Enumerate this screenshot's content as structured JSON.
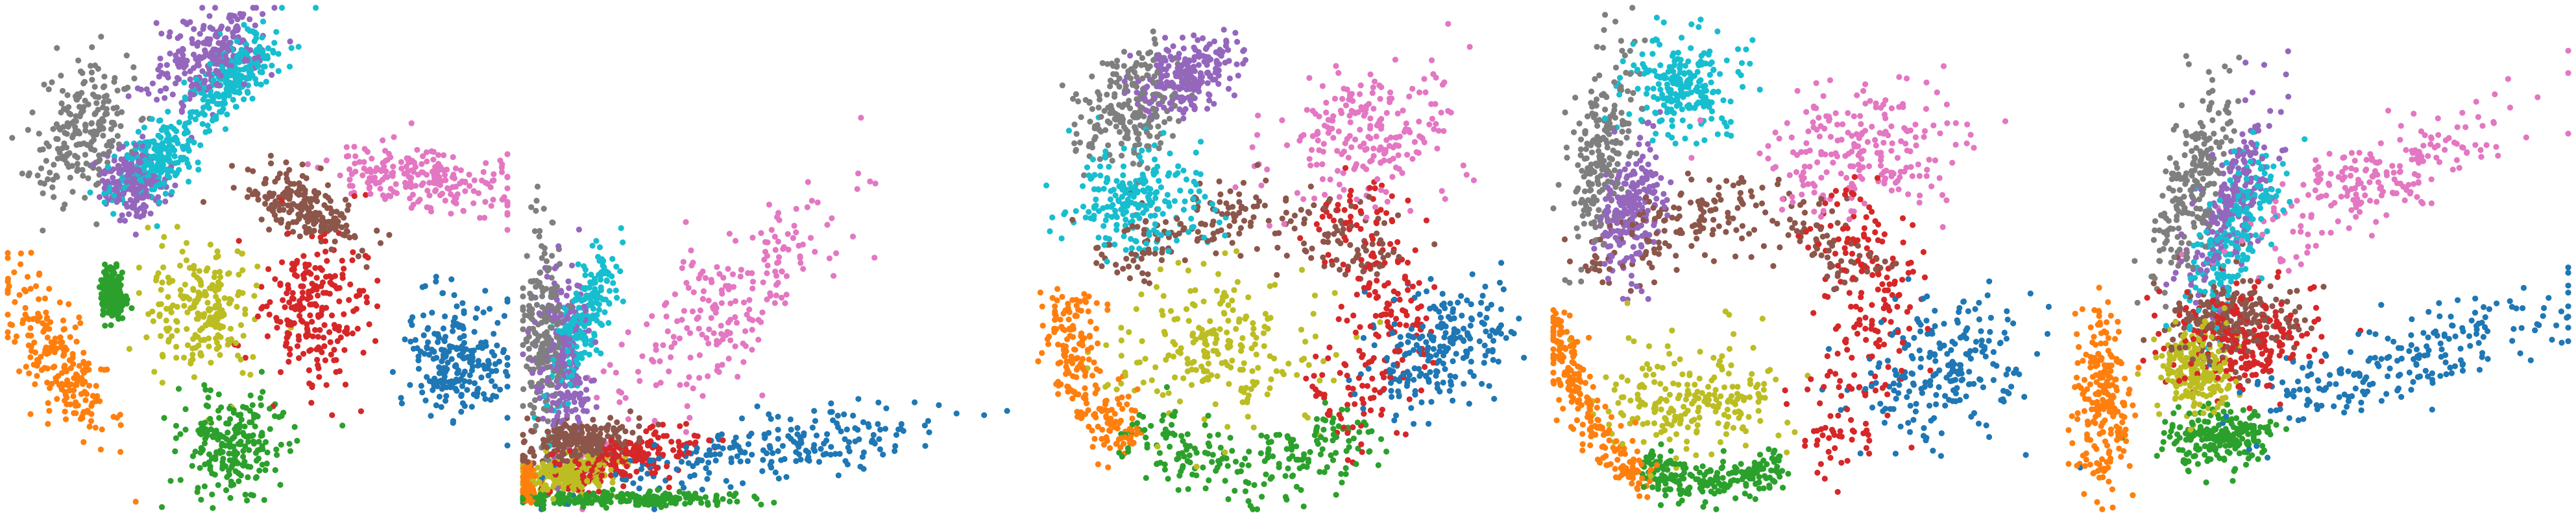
{
  "chart_data": [
    {
      "type": "scatter",
      "points_per_cluster": 220,
      "seed": 11,
      "axis_visible": false,
      "grid": false,
      "legend": "none",
      "clusters": [
        {
          "color": "#7f7f7f",
          "shape": "blob",
          "cx": 0.15,
          "cy": 0.25,
          "rx": 0.08,
          "ry": 0.14,
          "rot": 25
        },
        {
          "color": "#9467bd",
          "shape": "blob",
          "cx": 0.4,
          "cy": 0.1,
          "rx": 0.12,
          "ry": 0.07,
          "rot": -35
        },
        {
          "color": "#9467bd",
          "shape": "blob",
          "cx": 0.25,
          "cy": 0.35,
          "rx": 0.05,
          "ry": 0.06,
          "rot": 0
        },
        {
          "color": "#17becf",
          "shape": "blob",
          "cx": 0.45,
          "cy": 0.14,
          "rx": 0.1,
          "ry": 0.05,
          "rot": -40
        },
        {
          "color": "#17becf",
          "shape": "blob",
          "cx": 0.3,
          "cy": 0.3,
          "rx": 0.1,
          "ry": 0.05,
          "rot": -40
        },
        {
          "color": "#e377c2",
          "shape": "blob",
          "cx": 0.83,
          "cy": 0.34,
          "rx": 0.16,
          "ry": 0.06,
          "rot": 8
        },
        {
          "color": "#8c564b",
          "shape": "blob",
          "cx": 0.6,
          "cy": 0.4,
          "rx": 0.11,
          "ry": 0.05,
          "rot": 30
        },
        {
          "color": "#d62728",
          "shape": "blob",
          "cx": 0.61,
          "cy": 0.6,
          "rx": 0.1,
          "ry": 0.14,
          "rot": 0
        },
        {
          "color": "#bcbd22",
          "shape": "blob",
          "cx": 0.39,
          "cy": 0.6,
          "rx": 0.1,
          "ry": 0.12,
          "rot": 0
        },
        {
          "color": "#1f77b4",
          "shape": "blob",
          "cx": 0.9,
          "cy": 0.7,
          "rx": 0.09,
          "ry": 0.11,
          "rot": 0
        },
        {
          "color": "#2ca02c",
          "shape": "blob",
          "cx": 0.45,
          "cy": 0.87,
          "rx": 0.11,
          "ry": 0.1,
          "rot": 0
        },
        {
          "color": "#2ca02c",
          "shape": "blob",
          "cx": 0.21,
          "cy": 0.57,
          "rx": 0.02,
          "ry": 0.04,
          "rot": 0
        },
        {
          "color": "#ff7f0e",
          "shape": "blob",
          "cx": 0.1,
          "cy": 0.7,
          "rx": 0.06,
          "ry": 0.17,
          "rot": -30
        }
      ]
    },
    {
      "type": "scatter",
      "points_per_cluster": 220,
      "seed": 23,
      "axis_visible": false,
      "grid": false,
      "legend": "none",
      "clusters": [
        {
          "color": "#7f7f7f",
          "shape": "blob",
          "cx": 0.04,
          "cy": 0.65,
          "rx": 0.04,
          "ry": 0.18,
          "rot": 0
        },
        {
          "color": "#9467bd",
          "shape": "blob",
          "cx": 0.08,
          "cy": 0.7,
          "rx": 0.05,
          "ry": 0.17,
          "rot": 0
        },
        {
          "color": "#17becf",
          "shape": "blob",
          "cx": 0.12,
          "cy": 0.62,
          "rx": 0.04,
          "ry": 0.15,
          "rot": 20
        },
        {
          "color": "#e377c2",
          "shape": "blob",
          "cx": 0.4,
          "cy": 0.6,
          "rx": 0.28,
          "ry": 0.1,
          "rot": -45
        },
        {
          "color": "#8c564b",
          "shape": "blob",
          "cx": 0.12,
          "cy": 0.86,
          "rx": 0.1,
          "ry": 0.04,
          "rot": -10
        },
        {
          "color": "#d62728",
          "shape": "blob",
          "cx": 0.2,
          "cy": 0.9,
          "rx": 0.14,
          "ry": 0.04,
          "rot": -15
        },
        {
          "color": "#bcbd22",
          "shape": "blob",
          "cx": 0.09,
          "cy": 0.93,
          "rx": 0.08,
          "ry": 0.03,
          "rot": -5
        },
        {
          "color": "#1f77b4",
          "shape": "blob",
          "cx": 0.5,
          "cy": 0.88,
          "rx": 0.35,
          "ry": 0.05,
          "rot": -10
        },
        {
          "color": "#2ca02c",
          "shape": "blob",
          "cx": 0.2,
          "cy": 0.98,
          "rx": 0.2,
          "ry": 0.012,
          "rot": 0
        },
        {
          "color": "#ff7f0e",
          "shape": "blob",
          "cx": 0.01,
          "cy": 0.95,
          "rx": 0.01,
          "ry": 0.03,
          "rot": 0
        }
      ]
    },
    {
      "type": "scatter",
      "points_per_cluster": 220,
      "seed": 37,
      "axis_visible": false,
      "grid": false,
      "legend": "none",
      "clusters": [
        {
          "color": "#7f7f7f",
          "shape": "blob",
          "cx": 0.18,
          "cy": 0.2,
          "rx": 0.08,
          "ry": 0.12,
          "rot": 30
        },
        {
          "color": "#9467bd",
          "shape": "blob",
          "cx": 0.3,
          "cy": 0.14,
          "rx": 0.1,
          "ry": 0.06,
          "rot": -30
        },
        {
          "color": "#17becf",
          "shape": "blob",
          "cx": 0.2,
          "cy": 0.38,
          "rx": 0.13,
          "ry": 0.1,
          "rot": 0
        },
        {
          "color": "#e377c2",
          "shape": "blob",
          "cx": 0.66,
          "cy": 0.25,
          "rx": 0.16,
          "ry": 0.12,
          "rot": -20
        },
        {
          "color": "#8c564b",
          "shape": "arc",
          "cx": 0.42,
          "cy": 0.6,
          "rx": 0.28,
          "ry": 0.2,
          "a0": 200,
          "a1": 340,
          "w": 0.04
        },
        {
          "color": "#d62728",
          "shape": "arc",
          "cx": 0.42,
          "cy": 0.6,
          "rx": 0.3,
          "ry": 0.26,
          "a0": -60,
          "a1": 60,
          "w": 0.05
        },
        {
          "color": "#bcbd22",
          "shape": "blob",
          "cx": 0.35,
          "cy": 0.68,
          "rx": 0.2,
          "ry": 0.14,
          "rot": 0
        },
        {
          "color": "#1f77b4",
          "shape": "blob",
          "cx": 0.8,
          "cy": 0.68,
          "rx": 0.14,
          "ry": 0.09,
          "rot": -30
        },
        {
          "color": "#2ca02c",
          "shape": "arc",
          "cx": 0.42,
          "cy": 0.6,
          "rx": 0.33,
          "ry": 0.32,
          "a0": 45,
          "a1": 135,
          "w": 0.04
        },
        {
          "color": "#ff7f0e",
          "shape": "arc",
          "cx": 0.42,
          "cy": 0.62,
          "rx": 0.36,
          "ry": 0.33,
          "a0": 130,
          "a1": 190,
          "w": 0.03
        }
      ]
    },
    {
      "type": "scatter",
      "points_per_cluster": 220,
      "seed": 53,
      "axis_visible": false,
      "grid": false,
      "legend": "none",
      "clusters": [
        {
          "color": "#7f7f7f",
          "shape": "blob",
          "cx": 0.1,
          "cy": 0.28,
          "rx": 0.06,
          "ry": 0.2,
          "rot": 10
        },
        {
          "color": "#9467bd",
          "shape": "blob",
          "cx": 0.16,
          "cy": 0.4,
          "rx": 0.06,
          "ry": 0.12,
          "rot": 10
        },
        {
          "color": "#17becf",
          "shape": "blob",
          "cx": 0.26,
          "cy": 0.16,
          "rx": 0.1,
          "ry": 0.1,
          "rot": 0
        },
        {
          "color": "#e377c2",
          "shape": "blob",
          "cx": 0.62,
          "cy": 0.28,
          "rx": 0.18,
          "ry": 0.12,
          "rot": 0
        },
        {
          "color": "#8c564b",
          "shape": "arc",
          "cx": 0.35,
          "cy": 0.62,
          "rx": 0.28,
          "ry": 0.22,
          "a0": 200,
          "a1": 340,
          "w": 0.04
        },
        {
          "color": "#d62728",
          "shape": "arc",
          "cx": 0.35,
          "cy": 0.62,
          "rx": 0.3,
          "ry": 0.3,
          "a0": -50,
          "a1": 60,
          "w": 0.05
        },
        {
          "color": "#bcbd22",
          "shape": "blob",
          "cx": 0.28,
          "cy": 0.78,
          "rx": 0.17,
          "ry": 0.1,
          "rot": 0
        },
        {
          "color": "#1f77b4",
          "shape": "blob",
          "cx": 0.78,
          "cy": 0.72,
          "rx": 0.16,
          "ry": 0.12,
          "rot": -20
        },
        {
          "color": "#2ca02c",
          "shape": "arc",
          "cx": 0.32,
          "cy": 0.62,
          "rx": 0.28,
          "ry": 0.33,
          "a0": 60,
          "a1": 120,
          "w": 0.02
        },
        {
          "color": "#ff7f0e",
          "shape": "arc",
          "cx": 0.3,
          "cy": 0.6,
          "rx": 0.29,
          "ry": 0.37,
          "a0": 110,
          "a1": 180,
          "w": 0.02
        }
      ]
    },
    {
      "type": "scatter",
      "points_per_cluster": 220,
      "seed": 71,
      "axis_visible": false,
      "grid": false,
      "legend": "none",
      "clusters": [
        {
          "color": "#7f7f7f",
          "shape": "blob",
          "cx": 0.25,
          "cy": 0.35,
          "rx": 0.06,
          "ry": 0.2,
          "rot": 15
        },
        {
          "color": "#9467bd",
          "shape": "blob",
          "cx": 0.33,
          "cy": 0.38,
          "rx": 0.05,
          "ry": 0.18,
          "rot": 20
        },
        {
          "color": "#17becf",
          "shape": "blob",
          "cx": 0.33,
          "cy": 0.45,
          "rx": 0.06,
          "ry": 0.18,
          "rot": 25
        },
        {
          "color": "#e377c2",
          "shape": "blob",
          "cx": 0.6,
          "cy": 0.35,
          "rx": 0.28,
          "ry": 0.08,
          "rot": -25
        },
        {
          "color": "#8c564b",
          "shape": "blob",
          "cx": 0.33,
          "cy": 0.62,
          "rx": 0.12,
          "ry": 0.08,
          "rot": 0
        },
        {
          "color": "#d62728",
          "shape": "blob",
          "cx": 0.36,
          "cy": 0.66,
          "rx": 0.14,
          "ry": 0.1,
          "rot": 0
        },
        {
          "color": "#bcbd22",
          "shape": "blob",
          "cx": 0.25,
          "cy": 0.72,
          "rx": 0.07,
          "ry": 0.08,
          "rot": 0
        },
        {
          "color": "#1f77b4",
          "shape": "blob",
          "cx": 0.68,
          "cy": 0.7,
          "rx": 0.32,
          "ry": 0.07,
          "rot": -18
        },
        {
          "color": "#2ca02c",
          "shape": "blob",
          "cx": 0.3,
          "cy": 0.86,
          "rx": 0.1,
          "ry": 0.05,
          "rot": 0
        },
        {
          "color": "#ff7f0e",
          "shape": "blob",
          "cx": 0.07,
          "cy": 0.78,
          "rx": 0.05,
          "ry": 0.16,
          "rot": 0
        }
      ]
    }
  ]
}
